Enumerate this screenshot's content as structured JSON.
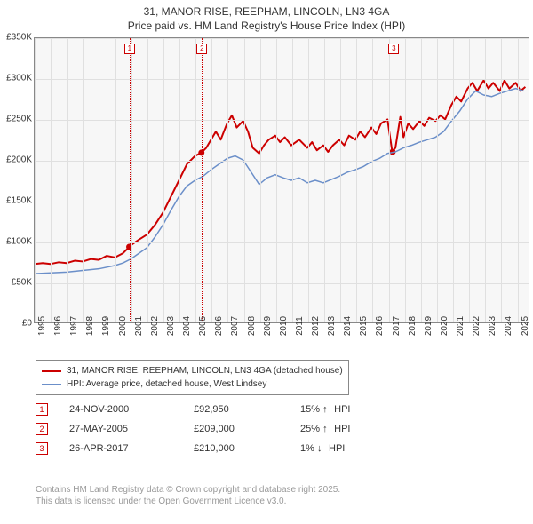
{
  "title_line1": "31, MANOR RISE, REEPHAM, LINCOLN, LN3 4GA",
  "title_line2": "Price paid vs. HM Land Registry's House Price Index (HPI)",
  "chart": {
    "type": "line",
    "background_color": "#f7f7f7",
    "grid_color": "#e0e0e0",
    "border_color": "#888888",
    "ylim": [
      0,
      350
    ],
    "ytick_step": 50,
    "ytick_labels": [
      "£0",
      "£50K",
      "£100K",
      "£150K",
      "£200K",
      "£250K",
      "£300K",
      "£350K"
    ],
    "xlim": [
      1995,
      2025.8
    ],
    "xtick_years": [
      1995,
      1996,
      1997,
      1998,
      1999,
      2000,
      2001,
      2002,
      2003,
      2004,
      2005,
      2006,
      2007,
      2008,
      2009,
      2010,
      2011,
      2012,
      2013,
      2014,
      2015,
      2016,
      2017,
      2018,
      2019,
      2020,
      2021,
      2022,
      2023,
      2024,
      2025
    ],
    "series": [
      {
        "name": "price_paid",
        "color": "#cc0000",
        "stroke_width": 2,
        "points": [
          [
            1995,
            72
          ],
          [
            1995.5,
            73
          ],
          [
            1996,
            72
          ],
          [
            1996.5,
            74
          ],
          [
            1997,
            73
          ],
          [
            1997.5,
            76
          ],
          [
            1998,
            75
          ],
          [
            1998.5,
            78
          ],
          [
            1999,
            77
          ],
          [
            1999.5,
            82
          ],
          [
            2000,
            80
          ],
          [
            2000.5,
            85
          ],
          [
            2000.9,
            92.95
          ],
          [
            2001,
            95
          ],
          [
            2001.5,
            102
          ],
          [
            2002,
            108
          ],
          [
            2002.5,
            120
          ],
          [
            2003,
            135
          ],
          [
            2003.5,
            155
          ],
          [
            2004,
            175
          ],
          [
            2004.5,
            195
          ],
          [
            2005,
            205
          ],
          [
            2005.4,
            209
          ],
          [
            2005.7,
            215
          ],
          [
            2006,
            225
          ],
          [
            2006.3,
            235
          ],
          [
            2006.6,
            225
          ],
          [
            2007,
            245
          ],
          [
            2007.3,
            255
          ],
          [
            2007.6,
            240
          ],
          [
            2008,
            248
          ],
          [
            2008.3,
            235
          ],
          [
            2008.6,
            215
          ],
          [
            2009,
            208
          ],
          [
            2009.3,
            218
          ],
          [
            2009.6,
            225
          ],
          [
            2010,
            230
          ],
          [
            2010.3,
            222
          ],
          [
            2010.6,
            228
          ],
          [
            2011,
            218
          ],
          [
            2011.5,
            225
          ],
          [
            2012,
            215
          ],
          [
            2012.3,
            222
          ],
          [
            2012.6,
            212
          ],
          [
            2013,
            218
          ],
          [
            2013.3,
            210
          ],
          [
            2013.6,
            218
          ],
          [
            2014,
            225
          ],
          [
            2014.3,
            218
          ],
          [
            2014.6,
            230
          ],
          [
            2015,
            225
          ],
          [
            2015.3,
            235
          ],
          [
            2015.6,
            228
          ],
          [
            2016,
            240
          ],
          [
            2016.3,
            232
          ],
          [
            2016.6,
            245
          ],
          [
            2017,
            250
          ],
          [
            2017.3,
            210
          ],
          [
            2017.5,
            215
          ],
          [
            2017.8,
            253
          ],
          [
            2018,
            228
          ],
          [
            2018.3,
            245
          ],
          [
            2018.6,
            238
          ],
          [
            2019,
            248
          ],
          [
            2019.3,
            242
          ],
          [
            2019.6,
            252
          ],
          [
            2020,
            248
          ],
          [
            2020.3,
            255
          ],
          [
            2020.6,
            250
          ],
          [
            2021,
            268
          ],
          [
            2021.3,
            278
          ],
          [
            2021.6,
            272
          ],
          [
            2022,
            288
          ],
          [
            2022.3,
            295
          ],
          [
            2022.6,
            285
          ],
          [
            2023,
            298
          ],
          [
            2023.3,
            288
          ],
          [
            2023.6,
            295
          ],
          [
            2024,
            285
          ],
          [
            2024.3,
            298
          ],
          [
            2024.6,
            288
          ],
          [
            2025,
            295
          ],
          [
            2025.3,
            285
          ],
          [
            2025.6,
            290
          ]
        ]
      },
      {
        "name": "hpi",
        "color": "#6b8fc9",
        "stroke_width": 1.5,
        "points": [
          [
            1995,
            60
          ],
          [
            1996,
            61
          ],
          [
            1997,
            62
          ],
          [
            1998,
            64
          ],
          [
            1999,
            66
          ],
          [
            2000,
            70
          ],
          [
            2000.5,
            73
          ],
          [
            2001,
            78
          ],
          [
            2001.5,
            85
          ],
          [
            2002,
            92
          ],
          [
            2002.5,
            105
          ],
          [
            2003,
            120
          ],
          [
            2003.5,
            138
          ],
          [
            2004,
            155
          ],
          [
            2004.5,
            168
          ],
          [
            2005,
            175
          ],
          [
            2005.5,
            180
          ],
          [
            2006,
            188
          ],
          [
            2006.5,
            195
          ],
          [
            2007,
            202
          ],
          [
            2007.5,
            205
          ],
          [
            2008,
            200
          ],
          [
            2008.5,
            185
          ],
          [
            2009,
            170
          ],
          [
            2009.5,
            178
          ],
          [
            2010,
            182
          ],
          [
            2010.5,
            178
          ],
          [
            2011,
            175
          ],
          [
            2011.5,
            178
          ],
          [
            2012,
            172
          ],
          [
            2012.5,
            175
          ],
          [
            2013,
            172
          ],
          [
            2013.5,
            176
          ],
          [
            2014,
            180
          ],
          [
            2014.5,
            185
          ],
          [
            2015,
            188
          ],
          [
            2015.5,
            192
          ],
          [
            2016,
            198
          ],
          [
            2016.5,
            202
          ],
          [
            2017,
            208
          ],
          [
            2017.5,
            210
          ],
          [
            2018,
            215
          ],
          [
            2018.5,
            218
          ],
          [
            2019,
            222
          ],
          [
            2019.5,
            225
          ],
          [
            2020,
            228
          ],
          [
            2020.5,
            235
          ],
          [
            2021,
            248
          ],
          [
            2021.5,
            260
          ],
          [
            2022,
            275
          ],
          [
            2022.5,
            285
          ],
          [
            2023,
            280
          ],
          [
            2023.5,
            278
          ],
          [
            2024,
            282
          ],
          [
            2024.5,
            285
          ],
          [
            2025,
            288
          ],
          [
            2025.5,
            285
          ]
        ]
      }
    ],
    "markers": [
      {
        "num": "1",
        "year": 2000.9,
        "value": 92.95
      },
      {
        "num": "2",
        "year": 2005.4,
        "value": 209
      },
      {
        "num": "3",
        "year": 2017.32,
        "value": 210
      }
    ],
    "marker_color": "#cc0000"
  },
  "legend": {
    "items": [
      {
        "color": "#cc0000",
        "width": 2,
        "label": "31, MANOR RISE, REEPHAM, LINCOLN, LN3 4GA (detached house)"
      },
      {
        "color": "#6b8fc9",
        "width": 1.5,
        "label": "HPI: Average price, detached house, West Lindsey"
      }
    ]
  },
  "transactions": [
    {
      "num": "1",
      "date": "24-NOV-2000",
      "price": "£92,950",
      "pct": "15%",
      "arrow": "↑",
      "suffix": "HPI"
    },
    {
      "num": "2",
      "date": "27-MAY-2005",
      "price": "£209,000",
      "pct": "25%",
      "arrow": "↑",
      "suffix": "HPI"
    },
    {
      "num": "3",
      "date": "26-APR-2017",
      "price": "£210,000",
      "pct": "1%",
      "arrow": "↓",
      "suffix": "HPI"
    }
  ],
  "footer_line1": "Contains HM Land Registry data © Crown copyright and database right 2025.",
  "footer_line2": "This data is licensed under the Open Government Licence v3.0."
}
